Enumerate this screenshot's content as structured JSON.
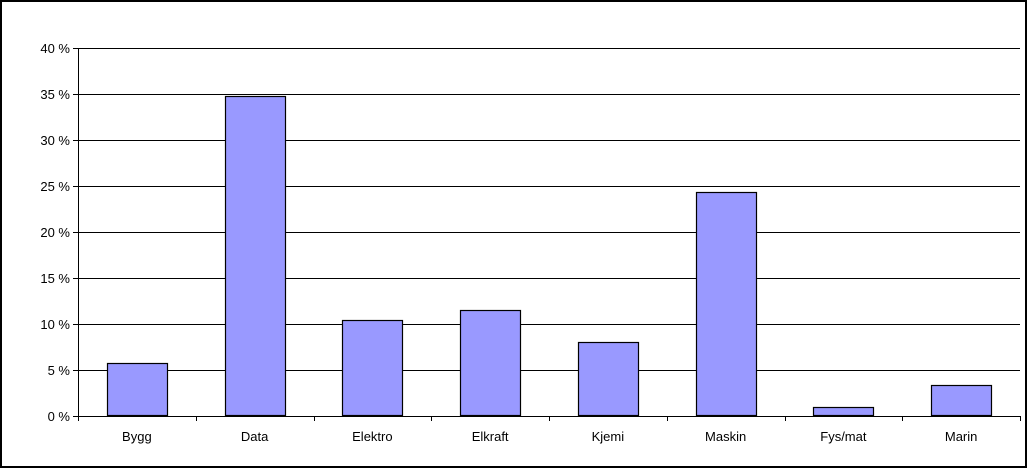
{
  "chart_data": {
    "type": "bar",
    "categories": [
      "Bygg",
      "Data",
      "Elektro",
      "Elkraft",
      "Kjemi",
      "Maskin",
      "Fys/mat",
      "Marin"
    ],
    "values": [
      5.8,
      34.8,
      10.4,
      11.5,
      8.0,
      24.3,
      1.0,
      3.4
    ],
    "ylim": [
      0,
      40
    ],
    "yticks": [
      0,
      5,
      10,
      15,
      20,
      25,
      30,
      35,
      40
    ],
    "ytick_labels": [
      "0 %",
      "5 %",
      "10 %",
      "15 %",
      "20 %",
      "25 %",
      "30 %",
      "35 %",
      "40 %"
    ],
    "title": "",
    "xlabel": "",
    "ylabel": "",
    "grid": "horizontal",
    "legend": "none",
    "colors": {
      "bar_fill": "#9999ff",
      "bar_stroke": "#000000",
      "grid": "#000000",
      "axis": "#000000",
      "background": "#ffffff"
    }
  }
}
